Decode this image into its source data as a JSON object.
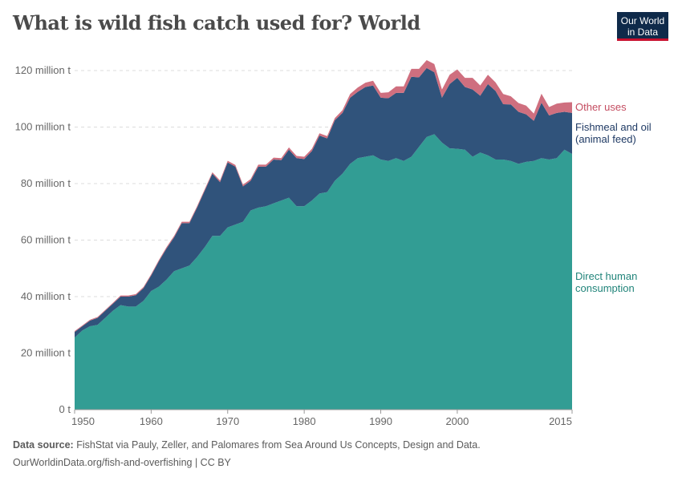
{
  "title": "What is wild fish catch used for? World",
  "logo": {
    "line1": "Our World",
    "line2": "in Data"
  },
  "footer": {
    "source_label": "Data source:",
    "source_text": " FishStat via Pauly, Zeller, and Palomares from Sea Around Us Concepts, Design and Data.",
    "url": "OurWorldinData.org/fish-and-overfishing | CC BY"
  },
  "chart_data": {
    "type": "area",
    "stacked": true,
    "title": "What is wild fish catch used for? World",
    "x_start": 1950,
    "x_end": 2015,
    "xticks": [
      "1950",
      "1960",
      "1970",
      "1980",
      "1990",
      "2000",
      "2015"
    ],
    "yticks": [
      "0 t",
      "20 million t",
      "40 million t",
      "60 million t",
      "80 million t",
      "100 million t",
      "120 million t"
    ],
    "ylim": [
      0,
      120000000
    ],
    "grid": "horizontal-dashed",
    "legend": "right-inline",
    "series": [
      {
        "name": "Direct human consumption",
        "label_lines": [
          "Direct human",
          "consumption"
        ],
        "color": "#329d94",
        "values": [
          25.5,
          28,
          29.5,
          30,
          32.5,
          35,
          37,
          36.5,
          36.5,
          38.5,
          42,
          43.5,
          46,
          49,
          50,
          51,
          54,
          57.5,
          61.5,
          61.5,
          64.5,
          65.5,
          66.5,
          70.5,
          71.5,
          72,
          73,
          74,
          75,
          72,
          72,
          74,
          76.5,
          77,
          81,
          83.5,
          87,
          89,
          89.5,
          90,
          88.5,
          88,
          89,
          88,
          89.5,
          93,
          96.5,
          97.5,
          94.5,
          92.5,
          92.3,
          92,
          89.5,
          91,
          90,
          88.5,
          88.5,
          88,
          87,
          87.7,
          88,
          89,
          88.5,
          89,
          92,
          90.5
        ]
      },
      {
        "name": "Fishmeal and oil (animal feed)",
        "label_lines": [
          "Fishmeal and oil",
          "(animal feed)"
        ],
        "color": "#30537b",
        "values": [
          2,
          1.5,
          2,
          2.5,
          2.5,
          2.5,
          3,
          3.5,
          4,
          4.5,
          5.5,
          9,
          11,
          12,
          16,
          15,
          17.5,
          20,
          22,
          19,
          23,
          20.5,
          12.5,
          10.5,
          14.5,
          14,
          15.5,
          14.3,
          17,
          17,
          16.7,
          17.5,
          20.5,
          19,
          21.4,
          21.5,
          23.4,
          23.5,
          24.7,
          24.7,
          21.9,
          22.2,
          23.1,
          24.1,
          28.3,
          24.6,
          24.4,
          21.9,
          15.9,
          22.7,
          25.1,
          22.2,
          23.8,
          20.1,
          25.2,
          24.3,
          19.6,
          20,
          18.4,
          16.8,
          14.2,
          19.6,
          15.6,
          16,
          13.4,
          14.5
        ]
      },
      {
        "name": "Other uses",
        "label_lines": [
          "Other uses"
        ],
        "color": "#cf6f7f",
        "values": [
          0.3,
          0.3,
          0.3,
          0.3,
          0.3,
          0.3,
          0.4,
          0.4,
          0.4,
          0.4,
          0.4,
          0.4,
          0.5,
          0.5,
          0.5,
          0.5,
          0.5,
          0.5,
          0.5,
          0.6,
          0.6,
          0.6,
          0.6,
          0.6,
          0.7,
          0.7,
          0.7,
          0.7,
          0.8,
          0.8,
          0.8,
          0.8,
          0.8,
          0.8,
          0.8,
          1,
          1.3,
          1.5,
          1.5,
          1.7,
          1.7,
          2.1,
          2.3,
          2.3,
          2.8,
          3,
          2.8,
          2.9,
          2.9,
          3.3,
          3,
          3.2,
          4.1,
          3.6,
          3.3,
          3,
          3.6,
          2.9,
          3.1,
          3.1,
          2.6,
          3.2,
          3,
          3.3,
          3.3,
          3.8
        ]
      }
    ],
    "units": "million t"
  }
}
